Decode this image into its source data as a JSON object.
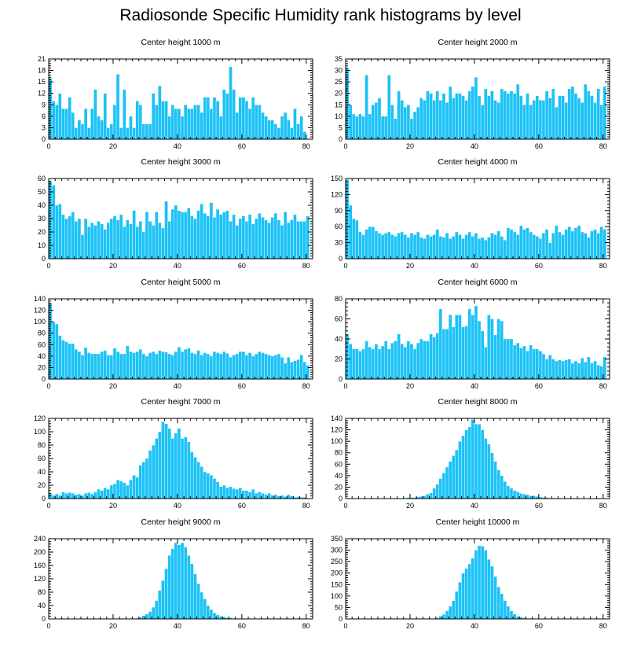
{
  "figure": {
    "title": "Radiosonde Specific Humidity rank histograms by level",
    "bar_color": "#1cc2f6"
  },
  "chart_data": [
    {
      "type": "bar",
      "title": "Center height 1000 m",
      "xlabel": "",
      "ylabel": "",
      "xlim": [
        0,
        82
      ],
      "ylim": [
        0,
        21
      ],
      "xticks": [
        0,
        20,
        40,
        60,
        80
      ],
      "yticks": [
        0,
        3,
        6,
        9,
        12,
        15,
        18,
        21
      ],
      "values": [
        16,
        10,
        9,
        12,
        8,
        8,
        11,
        7,
        3,
        5,
        4,
        8,
        3,
        8,
        13,
        6,
        5,
        12,
        3,
        4,
        9,
        17,
        3,
        13,
        3,
        6,
        3,
        10,
        9,
        4,
        4,
        4,
        12,
        9,
        14,
        10,
        10,
        6,
        9,
        8,
        8,
        6,
        9,
        8,
        8,
        9,
        9,
        7,
        11,
        11,
        8,
        11,
        10,
        6,
        13,
        12,
        19,
        13,
        7,
        11,
        11,
        10,
        8,
        11,
        9,
        9,
        7,
        6,
        5,
        5,
        4,
        3,
        6,
        7,
        5,
        3,
        8,
        4,
        6,
        2,
        0
      ]
    },
    {
      "type": "bar",
      "title": "Center height 2000 m",
      "xlabel": "",
      "ylabel": "",
      "xlim": [
        0,
        82
      ],
      "ylim": [
        0,
        35
      ],
      "xticks": [
        0,
        20,
        40,
        60,
        80
      ],
      "yticks": [
        0,
        5,
        10,
        15,
        20,
        25,
        30,
        35
      ],
      "values": [
        31,
        15,
        11,
        10,
        11,
        10,
        28,
        11,
        15,
        16,
        18,
        10,
        10,
        28,
        15,
        9,
        21,
        17,
        14,
        15,
        9,
        12,
        14,
        18,
        17,
        21,
        20,
        17,
        21,
        17,
        20,
        16,
        23,
        18,
        20,
        20,
        19,
        17,
        21,
        23,
        27,
        19,
        15,
        22,
        19,
        21,
        17,
        16,
        22,
        21,
        20,
        21,
        20,
        24,
        19,
        15,
        20,
        15,
        17,
        19,
        17,
        17,
        21,
        18,
        22,
        14,
        19,
        19,
        16,
        22,
        23,
        20,
        18,
        16,
        24,
        21,
        19,
        16,
        22,
        15,
        23
      ]
    },
    {
      "type": "bar",
      "title": "Center height 3000 m",
      "xlabel": "",
      "ylabel": "",
      "xlim": [
        0,
        82
      ],
      "ylim": [
        0,
        60
      ],
      "xticks": [
        0,
        20,
        40,
        60,
        80
      ],
      "yticks": [
        0,
        10,
        20,
        30,
        40,
        50,
        60
      ],
      "values": [
        58,
        55,
        40,
        41,
        33,
        30,
        32,
        35,
        28,
        30,
        18,
        30,
        24,
        27,
        25,
        28,
        26,
        22,
        27,
        30,
        32,
        29,
        33,
        24,
        29,
        26,
        36,
        24,
        28,
        20,
        35,
        28,
        25,
        35,
        27,
        23,
        43,
        28,
        37,
        40,
        36,
        35,
        35,
        38,
        32,
        30,
        36,
        41,
        34,
        32,
        42,
        31,
        37,
        33,
        35,
        36,
        28,
        33,
        25,
        30,
        32,
        28,
        33,
        26,
        30,
        34,
        31,
        29,
        27,
        31,
        34,
        29,
        25,
        35,
        27,
        29,
        33,
        28,
        28,
        28,
        32
      ]
    },
    {
      "type": "bar",
      "title": "Center height 4000 m",
      "xlabel": "",
      "ylabel": "",
      "xlim": [
        0,
        82
      ],
      "ylim": [
        0,
        150
      ],
      "xticks": [
        0,
        20,
        40,
        60,
        80
      ],
      "yticks": [
        0,
        30,
        60,
        90,
        120,
        150
      ],
      "values": [
        148,
        100,
        75,
        72,
        50,
        45,
        55,
        60,
        60,
        52,
        48,
        45,
        48,
        50,
        45,
        42,
        48,
        50,
        45,
        40,
        48,
        45,
        50,
        40,
        38,
        45,
        42,
        45,
        55,
        42,
        40,
        48,
        38,
        42,
        50,
        45,
        38,
        45,
        50,
        42,
        48,
        38,
        40,
        35,
        40,
        48,
        45,
        52,
        42,
        35,
        58,
        55,
        50,
        45,
        62,
        55,
        58,
        50,
        45,
        42,
        38,
        48,
        55,
        30,
        48,
        62,
        50,
        45,
        55,
        60,
        52,
        58,
        62,
        50,
        48,
        40,
        52,
        55,
        48,
        60,
        55
      ]
    },
    {
      "type": "bar",
      "title": "Center height 5000 m",
      "xlabel": "",
      "ylabel": "",
      "xlim": [
        0,
        82
      ],
      "ylim": [
        0,
        140
      ],
      "xticks": [
        0,
        20,
        40,
        60,
        80
      ],
      "yticks": [
        0,
        20,
        40,
        60,
        80,
        100,
        120,
        140
      ],
      "values": [
        133,
        100,
        96,
        76,
        68,
        65,
        62,
        62,
        52,
        48,
        42,
        55,
        46,
        44,
        44,
        44,
        48,
        50,
        42,
        42,
        54,
        48,
        44,
        44,
        58,
        48,
        46,
        48,
        52,
        44,
        40,
        46,
        48,
        44,
        50,
        48,
        47,
        44,
        42,
        48,
        56,
        48,
        52,
        54,
        46,
        44,
        50,
        42,
        46,
        44,
        40,
        48,
        46,
        44,
        48,
        45,
        38,
        42,
        44,
        48,
        48,
        42,
        46,
        40,
        44,
        48,
        46,
        44,
        42,
        40,
        42,
        44,
        38,
        28,
        38,
        30,
        32,
        34,
        42,
        30,
        24
      ]
    },
    {
      "type": "bar",
      "title": "Center height 6000 m",
      "xlabel": "",
      "ylabel": "",
      "xlim": [
        0,
        82
      ],
      "ylim": [
        0,
        80
      ],
      "xticks": [
        0,
        20,
        40,
        60,
        80
      ],
      "yticks": [
        0,
        20,
        40,
        60,
        80
      ],
      "values": [
        45,
        35,
        30,
        30,
        28,
        30,
        38,
        32,
        30,
        35,
        30,
        33,
        38,
        30,
        36,
        38,
        45,
        35,
        32,
        38,
        35,
        30,
        36,
        40,
        38,
        38,
        45,
        42,
        46,
        70,
        50,
        50,
        64,
        52,
        64,
        64,
        52,
        53,
        70,
        64,
        73,
        58,
        48,
        32,
        64,
        60,
        44,
        60,
        58,
        40,
        40,
        40,
        34,
        36,
        31,
        33,
        28,
        34,
        30,
        30,
        28,
        25,
        20,
        24,
        20,
        18,
        19,
        18,
        19,
        20,
        16,
        18,
        16,
        21,
        17,
        22,
        16,
        18,
        14,
        13,
        22
      ]
    },
    {
      "type": "bar",
      "title": "Center height 7000 m",
      "xlabel": "",
      "ylabel": "",
      "xlim": [
        0,
        82
      ],
      "ylim": [
        0,
        120
      ],
      "xticks": [
        0,
        20,
        40,
        60,
        80
      ],
      "yticks": [
        0,
        20,
        40,
        60,
        80,
        100,
        120
      ],
      "values": [
        8,
        5,
        7,
        5,
        10,
        8,
        9,
        8,
        6,
        7,
        5,
        8,
        9,
        7,
        10,
        14,
        12,
        16,
        14,
        20,
        22,
        28,
        26,
        24,
        20,
        28,
        35,
        32,
        50,
        55,
        60,
        72,
        80,
        90,
        100,
        115,
        112,
        105,
        90,
        98,
        105,
        90,
        92,
        85,
        70,
        62,
        55,
        48,
        40,
        38,
        35,
        30,
        25,
        18,
        20,
        16,
        18,
        15,
        14,
        16,
        12,
        12,
        10,
        14,
        8,
        10,
        8,
        6,
        8,
        5,
        6,
        4,
        5,
        3,
        6,
        4,
        2,
        3,
        2,
        2,
        1
      ]
    },
    {
      "type": "bar",
      "title": "Center height 8000 m",
      "xlabel": "",
      "ylabel": "",
      "xlim": [
        0,
        82
      ],
      "ylim": [
        0,
        140
      ],
      "xticks": [
        0,
        20,
        40,
        60,
        80
      ],
      "yticks": [
        0,
        20,
        40,
        60,
        80,
        100,
        120,
        140
      ],
      "values": [
        0,
        0,
        0,
        0,
        0,
        0,
        0,
        0,
        0,
        0,
        0,
        0,
        0,
        0,
        0,
        1,
        0,
        1,
        1,
        2,
        2,
        2,
        3,
        4,
        5,
        8,
        10,
        18,
        25,
        35,
        45,
        55,
        65,
        75,
        85,
        100,
        110,
        120,
        125,
        138,
        130,
        130,
        120,
        105,
        95,
        80,
        65,
        50,
        40,
        30,
        22,
        18,
        14,
        12,
        9,
        8,
        7,
        5,
        5,
        4,
        3,
        2,
        2,
        1,
        1,
        1,
        0,
        0,
        0,
        0,
        0,
        0,
        0,
        0,
        0,
        0,
        0,
        0,
        0,
        0,
        0
      ]
    },
    {
      "type": "bar",
      "title": "Center height 9000 m",
      "xlabel": "",
      "ylabel": "",
      "xlim": [
        0,
        82
      ],
      "ylim": [
        0,
        240
      ],
      "xticks": [
        0,
        20,
        40,
        60,
        80
      ],
      "yticks": [
        0,
        40,
        80,
        120,
        160,
        200,
        240
      ],
      "values": [
        0,
        0,
        0,
        0,
        0,
        0,
        0,
        0,
        0,
        0,
        0,
        0,
        0,
        0,
        0,
        0,
        0,
        0,
        0,
        0,
        0,
        0,
        0,
        0,
        0,
        0,
        1,
        2,
        5,
        10,
        15,
        22,
        35,
        55,
        85,
        115,
        150,
        190,
        210,
        228,
        222,
        228,
        215,
        190,
        165,
        135,
        105,
        80,
        60,
        40,
        28,
        18,
        12,
        8,
        6,
        4,
        3,
        2,
        1,
        1,
        0,
        0,
        0,
        0,
        0,
        0,
        0,
        0,
        0,
        0,
        0,
        0,
        0,
        0,
        0,
        0,
        0,
        0,
        0,
        0,
        0
      ]
    },
    {
      "type": "bar",
      "title": "Center height 10000 m",
      "xlabel": "",
      "ylabel": "",
      "xlim": [
        0,
        82
      ],
      "ylim": [
        0,
        350
      ],
      "xticks": [
        0,
        20,
        40,
        60,
        80
      ],
      "yticks": [
        0,
        50,
        100,
        150,
        200,
        250,
        300,
        350
      ],
      "values": [
        0,
        0,
        0,
        0,
        0,
        0,
        0,
        0,
        0,
        0,
        0,
        0,
        0,
        0,
        0,
        0,
        0,
        0,
        0,
        0,
        0,
        0,
        0,
        0,
        0,
        0,
        1,
        2,
        5,
        12,
        20,
        35,
        55,
        80,
        120,
        160,
        200,
        220,
        240,
        265,
        300,
        320,
        318,
        300,
        260,
        230,
        185,
        140,
        110,
        80,
        55,
        35,
        22,
        12,
        8,
        5,
        3,
        2,
        1,
        1,
        0,
        0,
        0,
        0,
        0,
        0,
        0,
        0,
        0,
        0,
        0,
        0,
        0,
        0,
        0,
        0,
        0,
        0,
        0,
        0,
        0
      ]
    }
  ]
}
